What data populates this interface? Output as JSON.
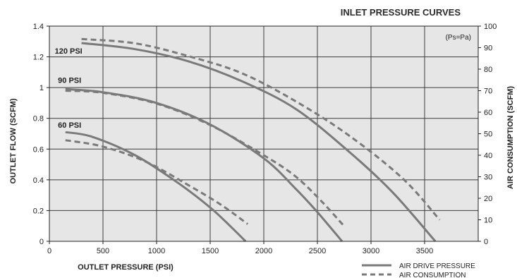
{
  "chart_data": {
    "type": "line",
    "title": "INLET PRESSURE CURVES",
    "xlabel": "OUTLET PRESSURE (PSI)",
    "ylabel": "OUTLET FLOW (SCFM)",
    "y2label": "AIR CONSUMPTION (SCFM)",
    "note": "(Ps=Pa)",
    "xlim": [
      0,
      4000
    ],
    "ylim": [
      0,
      1.4
    ],
    "y2lim": [
      0,
      100
    ],
    "xticks": [
      0,
      500,
      1000,
      1500,
      2000,
      2500,
      3000,
      3500
    ],
    "yticks": [
      0,
      0.2,
      0.4,
      0.6,
      0.8,
      1,
      1.2,
      1.4
    ],
    "y2ticks": [
      0,
      10,
      20,
      30,
      40,
      50,
      60,
      70,
      80,
      90,
      100
    ],
    "grid": true,
    "background": "#e6e6e6",
    "line_color": "#7a7a7a",
    "legend": {
      "position": "bottom-right",
      "items": [
        {
          "label": "AIR DRIVE PRESSURE",
          "style": "solid"
        },
        {
          "label": "AIR CONSUMPTION",
          "style": "dashed"
        }
      ]
    },
    "curve_labels": [
      {
        "text": "120 PSI",
        "x": 50,
        "y": 1.22
      },
      {
        "text": "90 PSI",
        "x": 80,
        "y": 1.03
      },
      {
        "text": "60 PSI",
        "x": 80,
        "y": 0.74
      }
    ],
    "series": [
      {
        "pressure": "120 PSI",
        "style": "solid",
        "axis": "left",
        "x": [
          300,
          800,
          1300,
          1800,
          2300,
          2800,
          3200,
          3600
        ],
        "y": [
          1.29,
          1.25,
          1.17,
          1.04,
          0.86,
          0.58,
          0.32,
          0.0
        ]
      },
      {
        "pressure": "120 PSI",
        "style": "dashed",
        "axis": "right",
        "x": [
          300,
          800,
          1300,
          1800,
          2300,
          2800,
          3300,
          3640
        ],
        "y": [
          94,
          92,
          86,
          78,
          65,
          49,
          29,
          10
        ]
      },
      {
        "pressure": "90 PSI",
        "style": "solid",
        "axis": "left",
        "x": [
          150,
          500,
          1000,
          1500,
          2000,
          2300,
          2500,
          2730
        ],
        "y": [
          0.99,
          0.97,
          0.9,
          0.76,
          0.54,
          0.34,
          0.19,
          0.0
        ]
      },
      {
        "pressure": "90 PSI",
        "style": "dashed",
        "axis": "right",
        "x": [
          150,
          500,
          1000,
          1500,
          2000,
          2300,
          2550,
          2750
        ],
        "y": [
          70,
          69,
          64,
          54,
          40,
          30,
          18,
          7
        ]
      },
      {
        "pressure": "60 PSI",
        "style": "solid",
        "axis": "left",
        "x": [
          150,
          400,
          800,
          1200,
          1500,
          1700,
          1830
        ],
        "y": [
          0.71,
          0.68,
          0.56,
          0.38,
          0.22,
          0.09,
          0.0
        ]
      },
      {
        "pressure": "60 PSI",
        "style": "dashed",
        "axis": "right",
        "x": [
          150,
          500,
          900,
          1300,
          1600,
          1850
        ],
        "y": [
          47,
          44,
          37,
          26,
          17,
          8
        ]
      }
    ]
  }
}
